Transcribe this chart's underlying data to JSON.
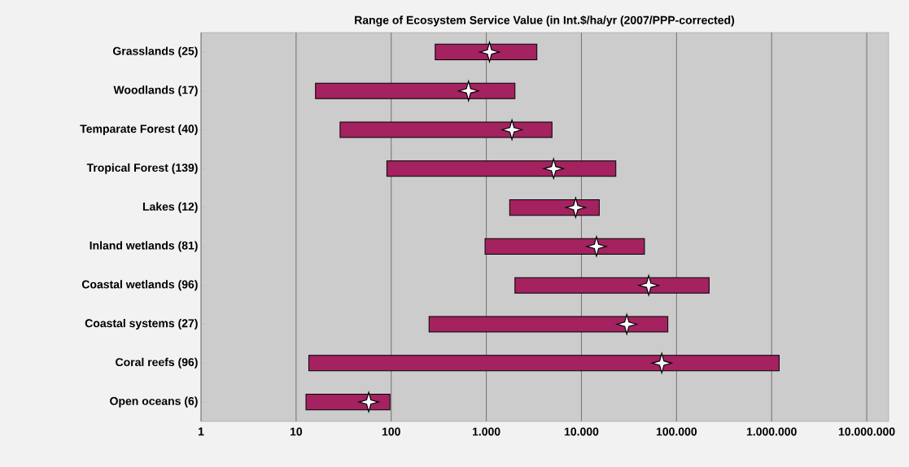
{
  "chart_data": {
    "type": "bar",
    "orientation": "horizontal",
    "title": "Range of Ecosystem Service Value (in Int.$/ha/yr (2007/PPP-corrected)",
    "categories": [
      "Grasslands (25)",
      "Woodlands (17)",
      "Temparate Forest (40)",
      "Tropical Forest (139)",
      "Lakes (12)",
      "Inland wetlands (81)",
      "Coastal wetlands (96)",
      "Coastal systems (27)",
      "Coral reefs (96)",
      "Open oceans (6)"
    ],
    "series": [
      {
        "color": "#a3225f",
        "base": [
          290,
          16,
          29,
          90,
          1760,
          970,
          2000,
          250,
          13.6,
          12.7
        ],
        "values": [
          3110,
          1984,
          4871,
          22910,
          13640,
          45030,
          218000,
          80750,
          1199986.4,
          84.3
        ]
      },
      {
        "type": "scatter",
        "color": "#ffffff",
        "marker": "star",
        "values": [
          1080,
          650,
          1860,
          5100,
          8700,
          14400,
          51000,
          30000,
          70000,
          58
        ]
      }
    ],
    "log": "x",
    "xlim": [
      1,
      17000000
    ],
    "xticks": [
      1,
      10,
      100,
      {
        "value": 1000,
        "label": "1.000"
      },
      {
        "value": 10000,
        "label": "10.000"
      },
      {
        "value": 100000,
        "label": "100.000"
      },
      {
        "value": 1000000,
        "label": "1.000.000"
      },
      {
        "value": 10000000,
        "label": "10.000.000"
      }
    ],
    "grid": "x"
  }
}
